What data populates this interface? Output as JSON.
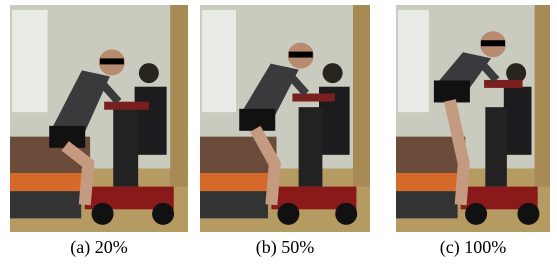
{
  "panels": [
    {
      "caption": "(a) 20%"
    },
    {
      "caption": "(b) 50%"
    },
    {
      "caption": "(c) 100%"
    }
  ]
}
